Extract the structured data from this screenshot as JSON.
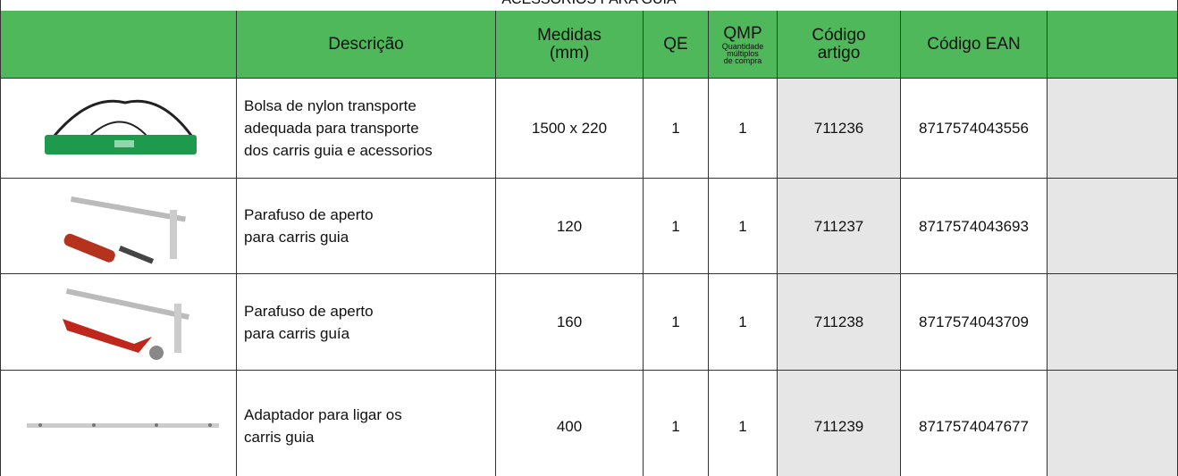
{
  "header": {
    "title": "ACESSÓRIOS PARA GUIA"
  },
  "table": {
    "columns": [
      {
        "lines": [
          "Descrição"
        ]
      },
      {
        "lines": [
          "Medidas",
          "(mm)"
        ]
      },
      {
        "lines": [
          "QE"
        ]
      },
      {
        "lines": [
          "QMP"
        ],
        "note": [
          "Quantidade",
          "múltiplos",
          "de compra"
        ]
      },
      {
        "lines": [
          "Código",
          "artigo"
        ]
      },
      {
        "lines": [
          "Código EAN"
        ]
      }
    ],
    "rows": [
      {
        "description": [
          "Bolsa de nylon transporte",
          "adequada para transporte",
          "dos carris guia e acessorios"
        ],
        "size": "1500 x 220",
        "qe": "1",
        "qmp": "1",
        "code": "711236",
        "ean": "8717574043556"
      },
      {
        "description": [
          "Parafuso de aperto",
          "para carris guia"
        ],
        "size": "120",
        "qe": "1",
        "qmp": "1",
        "code": "711237",
        "ean": "8717574043693"
      },
      {
        "description": [
          "Parafuso de aperto",
          "para carris guía"
        ],
        "size": "160",
        "qe": "1",
        "qmp": "1",
        "code": "711238",
        "ean": "8717574043709"
      },
      {
        "description": [
          "Adaptador para ligar os",
          "carris guia"
        ],
        "size": "400",
        "qe": "1",
        "qmp": "1",
        "code": "711239",
        "ean": "8717574047677"
      }
    ]
  }
}
